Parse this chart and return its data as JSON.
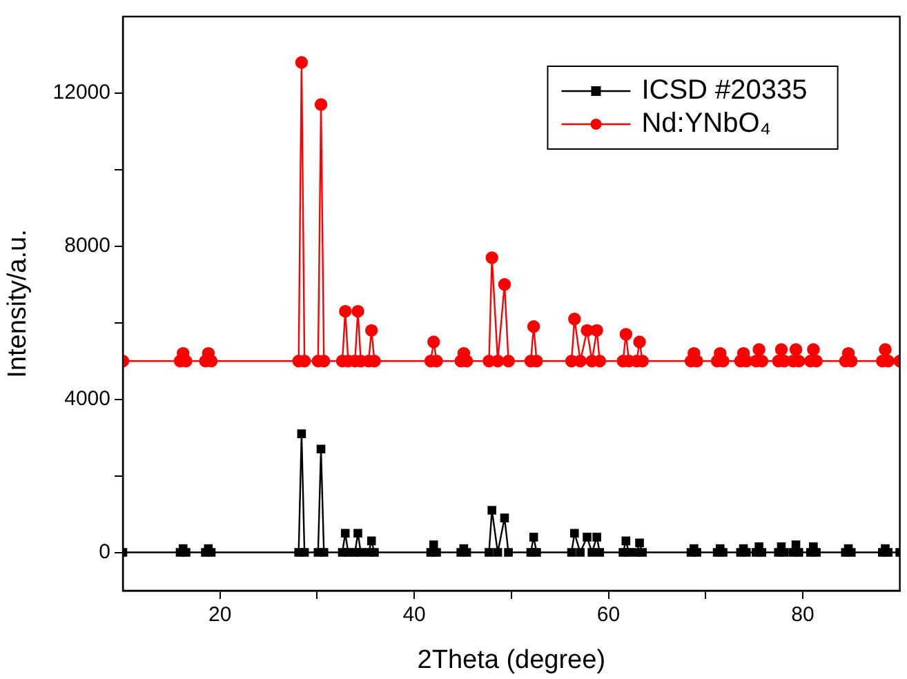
{
  "chart_data": {
    "type": "line",
    "xlabel": "2Theta (degree)",
    "ylabel": "Intensity/a.u.",
    "xlim": [
      10,
      90
    ],
    "xticks": [
      20,
      {
        "value": 30,
        "label": null
      },
      40,
      {
        "value": 50,
        "label": null
      },
      60,
      {
        "value": 70,
        "label": null
      },
      80
    ],
    "ylim": [
      -1000,
      14000
    ],
    "yticks": [
      0,
      {
        "value": 2000,
        "label": null
      },
      4000,
      {
        "value": 6000,
        "label": null
      },
      8000,
      {
        "value": 10000,
        "label": null
      },
      12000
    ],
    "grid": false,
    "legend": "top right",
    "line_style": "solid",
    "series": [
      {
        "name": "ICSD #20335",
        "color": "#000000",
        "marker": "square",
        "x": [
          10,
          15.9,
          16.2,
          16.5,
          18.5,
          18.8,
          19.1,
          28.1,
          28.4,
          28.7,
          30.1,
          30.4,
          30.7,
          32.6,
          32.9,
          33.2,
          33.9,
          34.2,
          34.5,
          35.3,
          35.6,
          35.9,
          41.7,
          42.0,
          42.3,
          44.8,
          45.1,
          45.4,
          47.7,
          48.0,
          48.6,
          49.3,
          49.7,
          52.0,
          52.3,
          52.6,
          56.2,
          56.5,
          57.1,
          57.8,
          58.3,
          58.8,
          59.1,
          61.5,
          61.8,
          62.1,
          62.9,
          63.2,
          63.5,
          68.5,
          68.8,
          69.1,
          71.2,
          71.5,
          71.8,
          73.6,
          73.9,
          74.2,
          75.2,
          75.5,
          75.8,
          77.5,
          77.8,
          78.1,
          79.0,
          79.3,
          79.6,
          80.8,
          81.1,
          81.4,
          84.4,
          84.7,
          85.0,
          88.2,
          88.5,
          88.8,
          90
        ],
        "values": [
          0,
          0,
          100,
          0,
          0,
          100,
          0,
          0,
          3100,
          0,
          0,
          2700,
          0,
          0,
          500,
          0,
          0,
          500,
          0,
          0,
          300,
          0,
          0,
          200,
          0,
          0,
          100,
          0,
          0,
          1100,
          0,
          900,
          0,
          0,
          400,
          0,
          0,
          500,
          0,
          400,
          0,
          400,
          0,
          0,
          300,
          0,
          0,
          250,
          0,
          0,
          100,
          0,
          0,
          100,
          0,
          0,
          100,
          0,
          0,
          150,
          0,
          0,
          150,
          0,
          0,
          200,
          0,
          0,
          150,
          0,
          0,
          100,
          0,
          0,
          100,
          0,
          0
        ]
      },
      {
        "name": "Nd:YNbO₄",
        "color": "#ff0000",
        "marker": "circle",
        "x": [
          10,
          15.9,
          16.2,
          16.5,
          18.5,
          18.8,
          19.1,
          28.1,
          28.4,
          28.7,
          30.1,
          30.4,
          30.7,
          32.6,
          32.9,
          33.2,
          33.9,
          34.2,
          34.5,
          35.3,
          35.6,
          35.9,
          41.7,
          42.0,
          42.3,
          44.8,
          45.1,
          45.4,
          47.7,
          48.0,
          48.6,
          49.3,
          49.7,
          52.0,
          52.3,
          52.6,
          56.2,
          56.5,
          57.1,
          57.8,
          58.3,
          58.8,
          59.1,
          61.5,
          61.8,
          62.1,
          62.9,
          63.2,
          63.5,
          68.5,
          68.8,
          69.1,
          71.2,
          71.5,
          71.8,
          73.6,
          73.9,
          74.2,
          75.2,
          75.5,
          75.8,
          77.5,
          77.8,
          78.1,
          79.0,
          79.3,
          79.6,
          80.8,
          81.1,
          81.4,
          84.4,
          84.7,
          85.0,
          88.2,
          88.5,
          88.8,
          90
        ],
        "values": [
          5000,
          5000,
          5200,
          5000,
          5000,
          5200,
          5000,
          5000,
          12800,
          5000,
          5000,
          11700,
          5000,
          5000,
          6300,
          5000,
          5000,
          6300,
          5000,
          5000,
          5800,
          5000,
          5000,
          5500,
          5000,
          5000,
          5200,
          5000,
          5000,
          7700,
          5000,
          7000,
          5000,
          5000,
          5900,
          5000,
          5000,
          6100,
          5000,
          5800,
          5000,
          5800,
          5000,
          5000,
          5700,
          5000,
          5000,
          5500,
          5000,
          5000,
          5200,
          5000,
          5000,
          5200,
          5000,
          5000,
          5200,
          5000,
          5000,
          5300,
          5000,
          5000,
          5300,
          5000,
          5000,
          5300,
          5000,
          5000,
          5300,
          5000,
          5000,
          5200,
          5000,
          5000,
          5300,
          5000,
          5000
        ]
      }
    ]
  }
}
